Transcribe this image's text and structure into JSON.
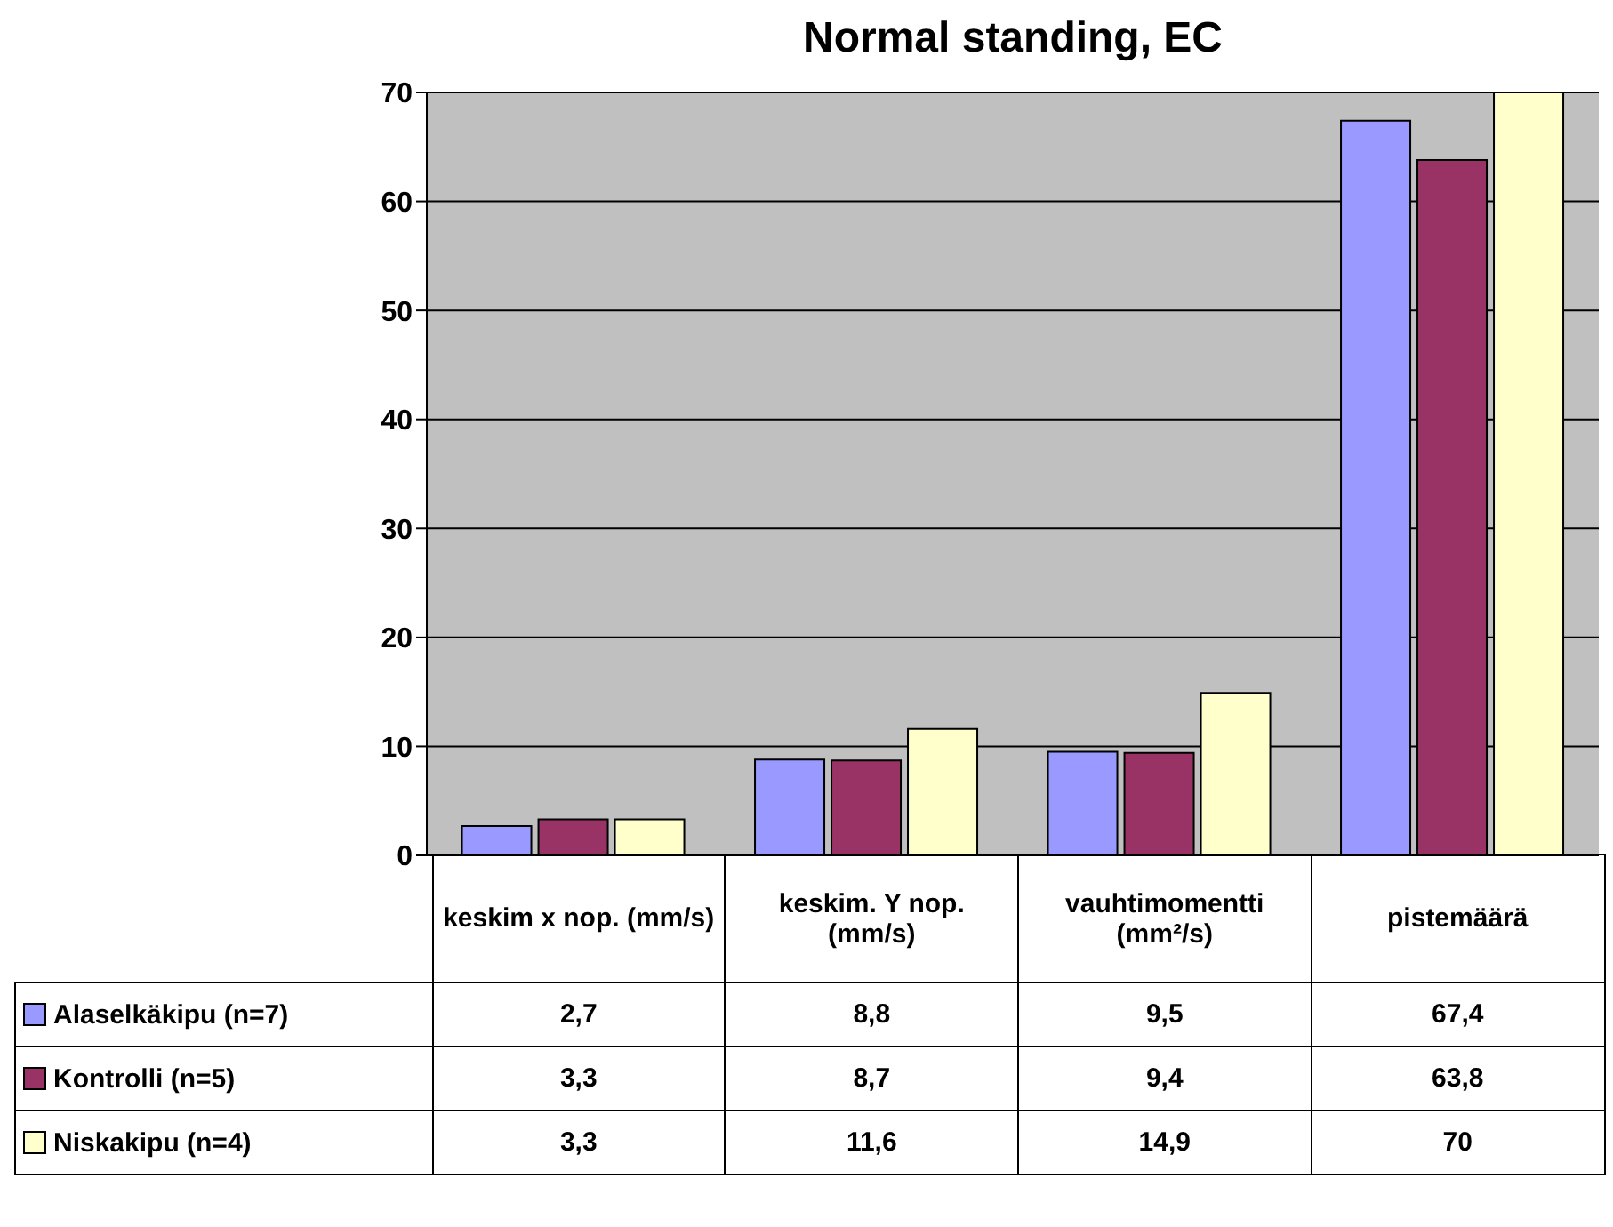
{
  "chart_data": {
    "type": "bar",
    "title": "Normal standing, EC",
    "categories": [
      "keskim x nop. (mm/s)",
      "keskim. Y nop. (mm/s)",
      "vauhtimomentti (mm²/s)",
      "pistemäärä"
    ],
    "series": [
      {
        "name": "Alaselkäkipu (n=7)",
        "color": "#9999ff",
        "values": [
          2.7,
          8.8,
          9.5,
          67.4
        ],
        "value_labels": [
          "2,7",
          "8,8",
          "9,5",
          "67,4"
        ]
      },
      {
        "name": "Kontrolli (n=5)",
        "color": "#993366",
        "values": [
          3.3,
          8.7,
          9.4,
          63.8
        ],
        "value_labels": [
          "3,3",
          "8,7",
          "9,4",
          "63,8"
        ]
      },
      {
        "name": "Niskakipu (n=4)",
        "color": "#ffffcc",
        "values": [
          3.3,
          11.6,
          14.9,
          70
        ],
        "value_labels": [
          "3,3",
          "11,6",
          "14,9",
          "70"
        ]
      }
    ],
    "ylim": [
      0,
      70
    ],
    "yticks": [
      0,
      10,
      20,
      30,
      40,
      50,
      60,
      70
    ],
    "grid": "y",
    "legend": "bottom left"
  }
}
